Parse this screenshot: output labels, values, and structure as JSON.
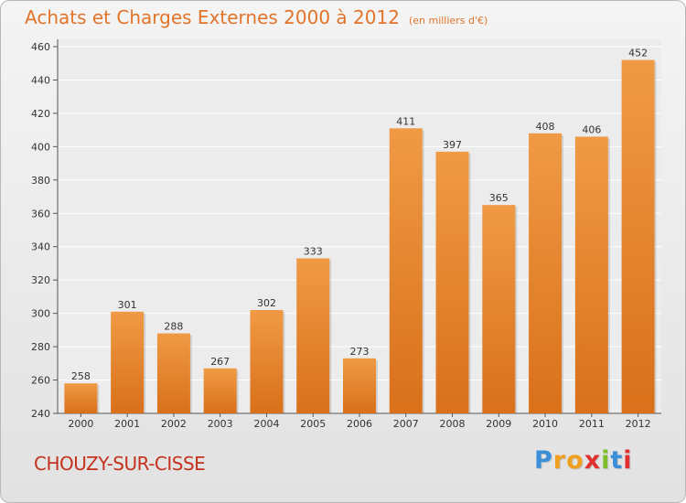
{
  "header": {
    "title": "Achats et Charges Externes 2000 à 2012",
    "unit": "(en milliers d'€)"
  },
  "footer": {
    "commune": "CHOUZY-SUR-CISSE",
    "logo_letters": [
      "P",
      "r",
      "o",
      "x",
      "i",
      "t",
      "i"
    ]
  },
  "colors": {
    "bar": "#f09a45",
    "bar_dark": "#d9701a",
    "title": "#e2742a",
    "commune": "#c4321e",
    "logo": [
      "#3a8fd8",
      "#f0a020",
      "#f0a020",
      "#e03030",
      "#7cbf2a",
      "#3a8fd8",
      "#e03030"
    ]
  },
  "chart_data": {
    "type": "bar",
    "title": "Achats et Charges Externes 2000 à 2012",
    "subtitle": "(en milliers d'€)",
    "categories": [
      "2000",
      "2001",
      "2002",
      "2003",
      "2004",
      "2005",
      "2006",
      "2007",
      "2008",
      "2009",
      "2010",
      "2011",
      "2012"
    ],
    "values": [
      258,
      301,
      288,
      267,
      302,
      333,
      273,
      411,
      397,
      365,
      408,
      406,
      452
    ],
    "ylim": [
      240,
      460
    ],
    "yticks": [
      240,
      260,
      280,
      300,
      320,
      340,
      360,
      380,
      400,
      420,
      440,
      460
    ],
    "grid": true,
    "data_labels": true
  }
}
